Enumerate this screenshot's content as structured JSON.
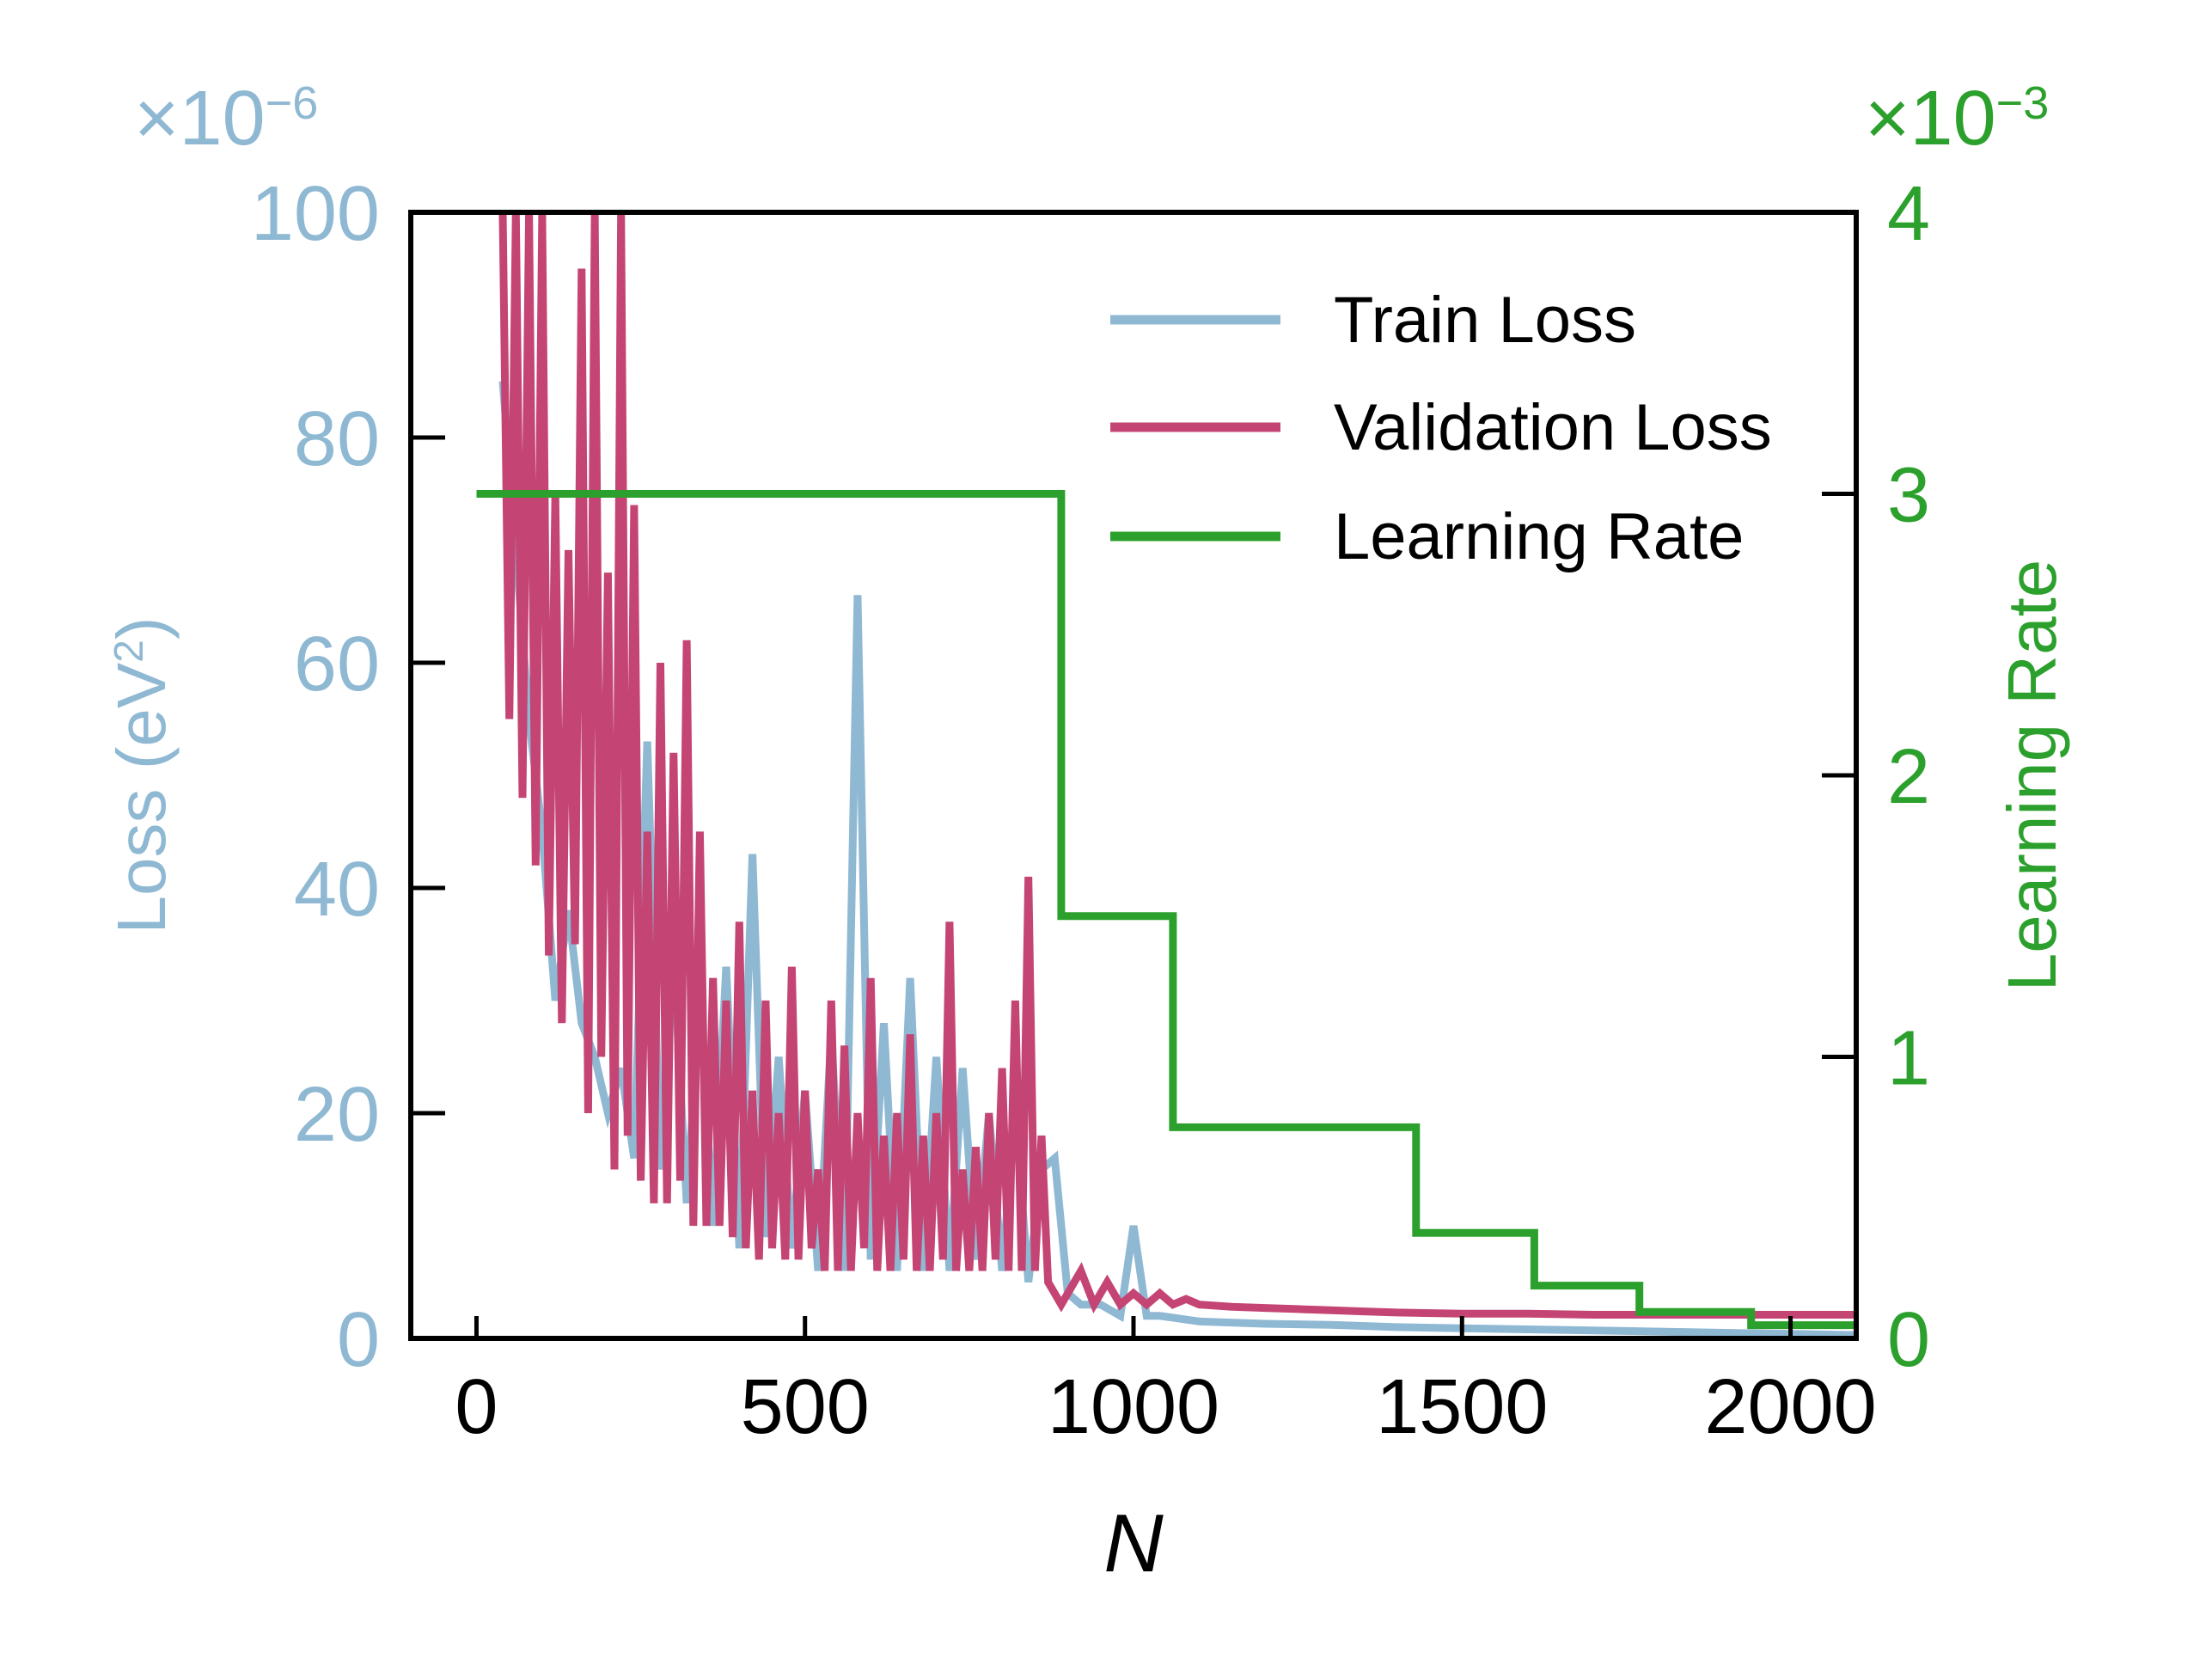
{
  "chart_data": {
    "type": "line",
    "xlabel": "N",
    "ylabel_left": "Loss (eV",
    "ylabel_left_sup": "2",
    "ylabel_left_end": ")",
    "ylabel_right": "Learning Rate",
    "xlim": [
      -100,
      2100
    ],
    "ylim_left": [
      0,
      100
    ],
    "ylim_right": [
      0,
      4
    ],
    "xticks": [
      0,
      500,
      1000,
      1500,
      2000
    ],
    "yticks_left": [
      0,
      20,
      40,
      60,
      80,
      100
    ],
    "yticks_right": [
      0,
      1,
      2,
      3,
      4
    ],
    "left_offset_base": "×10",
    "left_offset_exp": "−6",
    "right_offset_base": "×10",
    "right_offset_exp": "−3",
    "legend_position": "top-right",
    "colors": {
      "train": "#8fb8d3",
      "validation": "#c44574",
      "lr": "#2ca02c",
      "axis": "#000000"
    },
    "series": [
      {
        "name": "Train Loss",
        "axis": "left",
        "color": "#8fb8d3",
        "x": [
          40,
          60,
          80,
          100,
          120,
          140,
          160,
          180,
          200,
          220,
          240,
          260,
          280,
          300,
          320,
          340,
          360,
          380,
          400,
          420,
          440,
          460,
          480,
          500,
          520,
          540,
          560,
          580,
          600,
          620,
          640,
          660,
          680,
          700,
          720,
          740,
          760,
          780,
          800,
          820,
          840,
          860,
          880,
          900,
          920,
          950,
          980,
          1000,
          1020,
          1040,
          1100,
          1200,
          1300,
          1400,
          1500,
          1600,
          1700,
          1800,
          1900,
          2000,
          2100
        ],
        "values": [
          85,
          70,
          55,
          45,
          30,
          38,
          28,
          25,
          20,
          24,
          16,
          53,
          15,
          34,
          12,
          30,
          10,
          33,
          8,
          43,
          9,
          25,
          8,
          22,
          6,
          27,
          6,
          66,
          7,
          28,
          6,
          32,
          6,
          25,
          6,
          24,
          7,
          20,
          6,
          20,
          5,
          15,
          16,
          4,
          3,
          3,
          2,
          10,
          2,
          2,
          1.5,
          1.3,
          1.2,
          1,
          0.9,
          0.8,
          0.7,
          0.6,
          0.5,
          0.4,
          0.3
        ]
      },
      {
        "name": "Validation Loss",
        "axis": "left",
        "color": "#c44574",
        "x": [
          40,
          50,
          60,
          70,
          80,
          90,
          100,
          110,
          120,
          130,
          140,
          150,
          160,
          170,
          180,
          190,
          200,
          210,
          220,
          230,
          240,
          250,
          260,
          270,
          280,
          290,
          300,
          310,
          320,
          330,
          340,
          350,
          360,
          370,
          380,
          390,
          400,
          410,
          420,
          430,
          440,
          450,
          460,
          470,
          480,
          490,
          500,
          510,
          520,
          530,
          540,
          550,
          560,
          570,
          580,
          590,
          600,
          610,
          620,
          630,
          640,
          650,
          660,
          670,
          680,
          690,
          700,
          710,
          720,
          730,
          740,
          750,
          760,
          770,
          780,
          790,
          800,
          810,
          820,
          830,
          840,
          850,
          860,
          870,
          880,
          890,
          900,
          920,
          940,
          960,
          980,
          1000,
          1020,
          1040,
          1060,
          1080,
          1100,
          1150,
          1200,
          1250,
          1300,
          1350,
          1400,
          1500,
          1600,
          1700,
          1800,
          1900,
          2000,
          2100
        ],
        "values": [
          100,
          55,
          100,
          48,
          100,
          42,
          100,
          34,
          75,
          28,
          70,
          35,
          95,
          20,
          100,
          25,
          68,
          15,
          100,
          18,
          74,
          14,
          45,
          12,
          60,
          12,
          52,
          14,
          62,
          10,
          45,
          10,
          32,
          10,
          30,
          9,
          37,
          8,
          22,
          7,
          30,
          8,
          20,
          7,
          33,
          7,
          22,
          8,
          15,
          6,
          30,
          6,
          26,
          6,
          20,
          8,
          32,
          6,
          18,
          6,
          20,
          7,
          27,
          6,
          18,
          6,
          20,
          7,
          37,
          6,
          15,
          6,
          17,
          6,
          20,
          7,
          24,
          6,
          30,
          6,
          41,
          6,
          18,
          5,
          4,
          3,
          4,
          6,
          3,
          5,
          3,
          4,
          3,
          4,
          3,
          3.5,
          3,
          2.8,
          2.7,
          2.6,
          2.5,
          2.4,
          2.3,
          2.2,
          2.2,
          2.1,
          2.1,
          2.1,
          2.1,
          2.1
        ]
      },
      {
        "name": "Learning Rate",
        "axis": "right",
        "color": "#2ca02c",
        "x": [
          0,
          890,
          890,
          1060,
          1060,
          1430,
          1430,
          1610,
          1610,
          1770,
          1770,
          1940,
          1940,
          2100
        ],
        "values": [
          3.0,
          3.0,
          1.5,
          1.5,
          0.75,
          0.75,
          0.375,
          0.375,
          0.1875,
          0.1875,
          0.09375,
          0.09375,
          0.046875,
          0.046875
        ]
      }
    ]
  }
}
